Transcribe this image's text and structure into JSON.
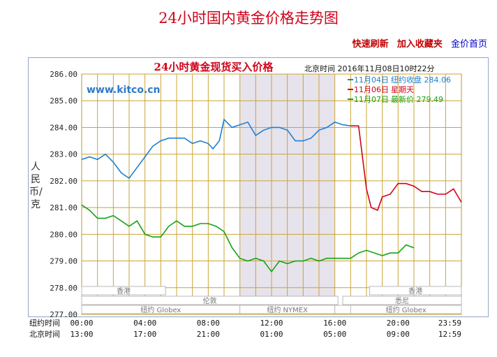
{
  "page": {
    "title": "24小时国内黄金价格走势图",
    "links": [
      "快速刷新",
      "加入收藏夹",
      "金价首页"
    ]
  },
  "chart_data": {
    "type": "line",
    "title": "24小时黄金现货买入价格",
    "watermark": "www.kitco.cn",
    "header_info": "北京时间  2016年11月08日10时22分",
    "ylabel": "人民币/克",
    "ylim": [
      277,
      286
    ],
    "yticks": [
      "286.00",
      "285.00",
      "284.00",
      "283.00",
      "282.00",
      "281.00",
      "280.00",
      "279.00",
      "278.00",
      "277.00"
    ],
    "x_rows": [
      {
        "label": "纽约时间",
        "ticks": [
          "00:00",
          "04:00",
          "08:00",
          "12:00",
          "16:00",
          "20:00",
          "23:59"
        ]
      },
      {
        "label": "北京时间",
        "ticks": [
          "13:00",
          "17:00",
          "21:00",
          "01:00",
          "05:00",
          "09:00",
          "12:59"
        ]
      }
    ],
    "sessions": [
      {
        "name": "香港",
        "start": 0,
        "end": 5.3
      },
      {
        "name": "伦敦",
        "start": 0,
        "end": 16.2
      },
      {
        "name": "纽约 Globex",
        "start": 0,
        "end": 10
      },
      {
        "name": "纽约 NYMEX",
        "start": 10,
        "end": 16
      },
      {
        "name": "纽约 Globex",
        "start": 16,
        "end": 24
      },
      {
        "name": "香港",
        "start": 18.2,
        "end": 24
      },
      {
        "name": "悉尼",
        "start": 16.5,
        "end": 24
      },
      {
        "name": "纽约 Globex",
        "start": 17,
        "end": 24
      }
    ],
    "nymex_highlight": [
      10,
      16
    ],
    "legend": [
      {
        "name": "11月04日",
        "desc": "纽约收盘",
        "value": "284.06",
        "color": "#1e7fd6"
      },
      {
        "name": "11月06日",
        "desc": "星期天",
        "value": "",
        "color": "#d0021b"
      },
      {
        "name": "11月07日",
        "desc": "最新价",
        "value": "279.49",
        "color": "#17a317"
      }
    ],
    "series": [
      {
        "name": "11月04日",
        "color": "#1e7fd6",
        "x": [
          0,
          0.5,
          1,
          1.5,
          2,
          2.5,
          3,
          3.5,
          4,
          4.5,
          5,
          5.5,
          6,
          6.5,
          7,
          7.5,
          8,
          8.3,
          8.7,
          9,
          9.5,
          10,
          10.5,
          11,
          11.5,
          12,
          12.5,
          13,
          13.5,
          14,
          14.5,
          15,
          15.5,
          16,
          16.5,
          17
        ],
        "y": [
          282.8,
          282.9,
          282.8,
          283.0,
          282.7,
          282.3,
          282.1,
          282.5,
          282.9,
          283.3,
          283.5,
          283.6,
          283.6,
          283.6,
          283.4,
          283.5,
          283.4,
          283.2,
          283.5,
          284.3,
          284.0,
          284.1,
          284.2,
          283.7,
          283.9,
          284.0,
          284.0,
          283.9,
          283.5,
          283.5,
          283.6,
          283.9,
          284.0,
          284.2,
          284.1,
          284.06
        ]
      },
      {
        "name": "11月06日",
        "color": "#d0021b",
        "x": [
          17,
          17.5,
          18,
          18.3,
          18.7,
          19,
          19.5,
          20,
          20.5,
          21,
          21.5,
          22,
          22.5,
          23,
          23.5,
          24
        ],
        "y": [
          284.06,
          284.06,
          281.7,
          281.0,
          280.9,
          281.4,
          281.5,
          281.9,
          281.9,
          281.8,
          281.6,
          281.6,
          281.5,
          281.5,
          281.7,
          281.2
        ]
      },
      {
        "name": "11月07日",
        "color": "#17a317",
        "x": [
          0,
          0.5,
          1,
          1.5,
          2,
          2.5,
          3,
          3.5,
          4,
          4.5,
          5,
          5.5,
          6,
          6.5,
          7,
          7.5,
          8,
          8.5,
          9,
          9.5,
          10,
          10.5,
          11,
          11.5,
          12,
          12.5,
          13,
          13.5,
          14,
          14.5,
          15,
          15.5,
          16,
          16.5,
          17,
          17.5,
          18,
          18.5,
          19,
          19.5,
          20,
          20.5,
          21
        ],
        "y": [
          281.1,
          280.9,
          280.6,
          280.6,
          280.7,
          280.5,
          280.3,
          280.5,
          280.0,
          279.9,
          279.9,
          280.3,
          280.5,
          280.3,
          280.3,
          280.4,
          280.4,
          280.3,
          280.1,
          279.5,
          279.1,
          279.0,
          279.1,
          279.0,
          278.6,
          279.0,
          278.9,
          279.0,
          279.0,
          279.1,
          279.0,
          279.1,
          279.1,
          279.1,
          279.1,
          279.3,
          279.4,
          279.3,
          279.2,
          279.3,
          279.3,
          279.6,
          279.49
        ]
      }
    ]
  }
}
